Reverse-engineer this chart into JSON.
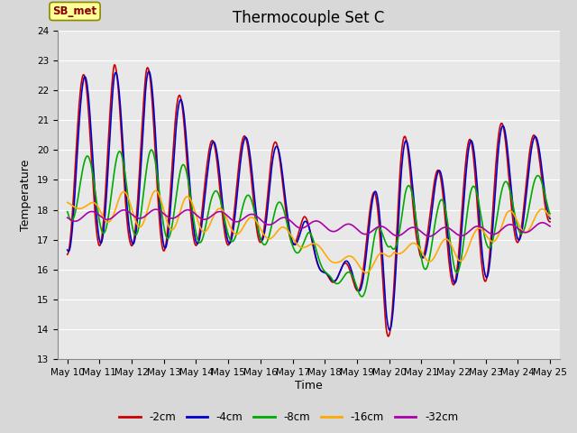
{
  "title": "Thermocouple Set C",
  "xlabel": "Time",
  "ylabel": "Temperature",
  "ylim": [
    13.0,
    24.0
  ],
  "yticks": [
    13.0,
    14.0,
    15.0,
    16.0,
    17.0,
    18.0,
    19.0,
    20.0,
    21.0,
    22.0,
    23.0,
    24.0
  ],
  "xtick_labels": [
    "May 10",
    "May 11",
    "May 12",
    "May 13",
    "May 14",
    "May 15",
    "May 16",
    "May 17",
    "May 18",
    "May 19",
    "May 20",
    "May 21",
    "May 22",
    "May 23",
    "May 24",
    "May 25"
  ],
  "colors": {
    "-2cm": "#cc0000",
    "-4cm": "#0000cc",
    "-8cm": "#00aa00",
    "-16cm": "#ffaa00",
    "-32cm": "#aa00aa"
  },
  "legend_label": "SB_met",
  "background_color": "#d8d8d8",
  "plot_background": "#e8e8e8",
  "grid_color": "#ffffff",
  "linewidth": 1.2,
  "title_fontsize": 12,
  "axis_fontsize": 9,
  "tick_fontsize": 7.5
}
